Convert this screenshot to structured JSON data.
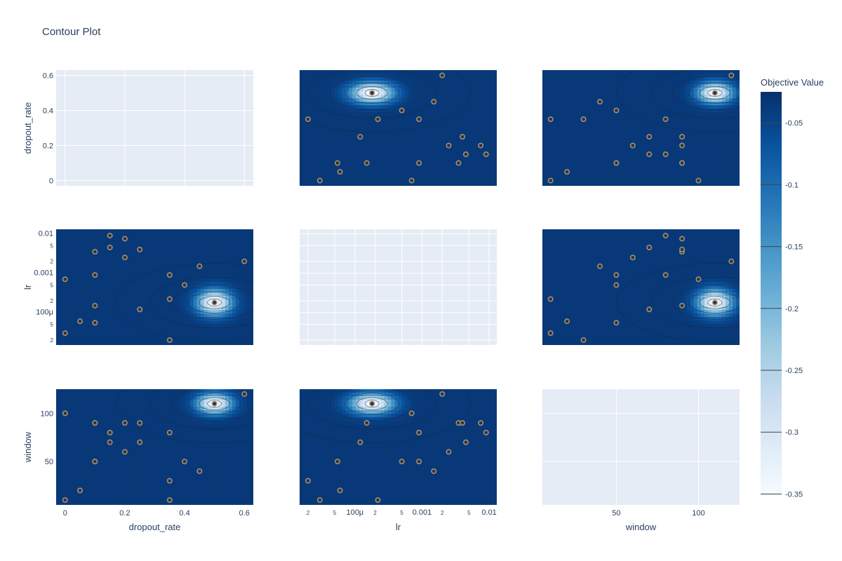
{
  "chart_data": {
    "type": "contour",
    "title": "Contour Plot",
    "params": [
      "dropout_rate",
      "lr",
      "window"
    ],
    "colorbar": {
      "title": "Objective Value",
      "ticks": [
        "-0.05",
        "-0.1",
        "-0.15",
        "-0.2",
        "-0.25",
        "-0.3",
        "-0.35"
      ],
      "tick_values": [
        -0.05,
        -0.1,
        -0.15,
        -0.2,
        -0.25,
        -0.3,
        -0.35
      ],
      "range": [
        -0.352,
        -0.025
      ],
      "colors": [
        "#f7fbff",
        "#08306b"
      ]
    },
    "axes": {
      "dropout_rate": {
        "label": "dropout_rate",
        "range": [
          -0.03,
          0.63
        ],
        "ticks": [
          "0",
          "0.2",
          "0.4",
          "0.6"
        ],
        "tick_values": [
          0,
          0.2,
          0.4,
          0.6
        ]
      },
      "window": {
        "label": "window",
        "range": [
          5,
          125
        ],
        "ticks_y": [
          "50",
          "100"
        ],
        "tick_values": [
          50,
          100
        ],
        "ticks_x": [
          "50",
          "100"
        ]
      },
      "lr": {
        "label": "lr",
        "log": true,
        "range": [
          1.5e-05,
          0.013
        ],
        "ticks_y": [
          "0.01",
          "5",
          "2",
          "0.001",
          "5",
          "2",
          "100μ",
          "5",
          "2"
        ],
        "tick_values_y": [
          0.01,
          0.005,
          0.002,
          0.001,
          0.0005,
          0.0002,
          0.0001,
          5e-05,
          2e-05
        ],
        "ticks_x": [
          "2",
          "5",
          "100μ",
          "2",
          "5",
          "0.001",
          "2",
          "5",
          "0.01"
        ],
        "tick_values_x": [
          2e-05,
          5e-05,
          0.0001,
          0.0002,
          0.0005,
          0.001,
          0.002,
          0.005,
          0.01
        ]
      }
    },
    "trials": [
      {
        "dropout_rate": 0.0,
        "lr": 3e-05,
        "window": 10
      },
      {
        "dropout_rate": 0.0,
        "lr": 0.0007,
        "window": 100
      },
      {
        "dropout_rate": 0.05,
        "lr": 6e-05,
        "window": 20
      },
      {
        "dropout_rate": 0.1,
        "lr": 0.00015,
        "window": 90
      },
      {
        "dropout_rate": 0.1,
        "lr": 0.0009,
        "window": 50
      },
      {
        "dropout_rate": 0.1,
        "lr": 0.0035,
        "window": 90
      },
      {
        "dropout_rate": 0.1,
        "lr": 5.5e-05,
        "window": 50
      },
      {
        "dropout_rate": 0.15,
        "lr": 0.0045,
        "window": 70
      },
      {
        "dropout_rate": 0.15,
        "lr": 0.009,
        "window": 80
      },
      {
        "dropout_rate": 0.2,
        "lr": 0.0075,
        "window": 90
      },
      {
        "dropout_rate": 0.2,
        "lr": 0.0025,
        "window": 60
      },
      {
        "dropout_rate": 0.25,
        "lr": 0.004,
        "window": 90
      },
      {
        "dropout_rate": 0.25,
        "lr": 0.00012,
        "window": 70
      },
      {
        "dropout_rate": 0.35,
        "lr": 0.0009,
        "window": 80
      },
      {
        "dropout_rate": 0.35,
        "lr": 0.00022,
        "window": 10
      },
      {
        "dropout_rate": 0.35,
        "lr": 2e-05,
        "window": 30
      },
      {
        "dropout_rate": 0.4,
        "lr": 0.0005,
        "window": 50
      },
      {
        "dropout_rate": 0.45,
        "lr": 0.0015,
        "window": 40
      },
      {
        "dropout_rate": 0.5,
        "lr": 0.00018,
        "window": 110
      },
      {
        "dropout_rate": 0.6,
        "lr": 0.002,
        "window": 120
      }
    ],
    "best_trial": {
      "dropout_rate": 0.5,
      "lr": 0.00018,
      "window": 110
    },
    "grid": true,
    "legend": "colorbar-right"
  }
}
